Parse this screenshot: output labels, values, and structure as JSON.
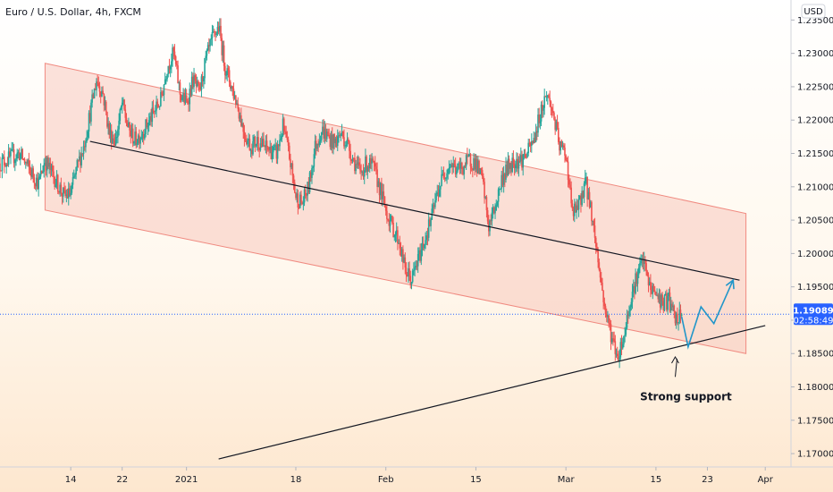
{
  "chart_title": "Euro / U.S. Dollar, 4h, FXCM",
  "currency_badge": "USD",
  "price_tag": {
    "value": "1.19089",
    "countdown": "02:58:49",
    "price": 1.19089,
    "bg_color": "#2962ff"
  },
  "annotation": "Strong support",
  "colors": {
    "up": "#26a69a",
    "down": "#ef5350",
    "channel_fill": "#f6b9ad",
    "channel_stroke": "#f08a80",
    "trendline": "#131722",
    "projection": "#2196c9",
    "price_line": "#2962ff"
  },
  "chart_data": {
    "type": "candlestick",
    "title": "Euro / U.S. Dollar, 4h, FXCM",
    "y_ticks": [
      1.17,
      1.175,
      1.18,
      1.185,
      1.19,
      1.195,
      1.2,
      1.205,
      1.21,
      1.215,
      1.22,
      1.225,
      1.23,
      1.235
    ],
    "y_tick_labels": [
      "1.17000",
      "1.17500",
      "1.18000",
      "1.18500",
      "1.19000",
      "1.19500",
      "1.20000",
      "1.20500",
      "1.21000",
      "1.21500",
      "1.22000",
      "1.22500",
      "1.23000",
      "1.23500"
    ],
    "ylim": [
      1.168,
      1.238
    ],
    "x_ticks": [
      "14",
      "22",
      "2021",
      "18",
      "Feb",
      "15",
      "Mar",
      "15",
      "23",
      "Apr"
    ],
    "x_tick_dates": [
      "2020-12-14",
      "2020-12-22",
      "2021-01-01",
      "2021-01-18",
      "2021-02-01",
      "2021-02-15",
      "2021-03-01",
      "2021-03-15",
      "2021-03-23",
      "2021-04-01"
    ],
    "xlim": [
      "2020-12-03",
      "2021-04-05"
    ],
    "price_path": [
      [
        "2020-12-03",
        1.2135
      ],
      [
        "2020-12-06",
        1.215
      ],
      [
        "2020-12-09",
        1.2105
      ],
      [
        "2020-12-10",
        1.214
      ],
      [
        "2020-12-13",
        1.2085
      ],
      [
        "2020-12-14",
        1.209
      ],
      [
        "2020-12-15",
        1.213
      ],
      [
        "2020-12-16",
        1.216
      ],
      [
        "2020-12-17",
        1.221
      ],
      [
        "2020-12-18",
        1.226
      ],
      [
        "2020-12-19",
        1.224
      ],
      [
        "2020-12-20",
        1.218
      ],
      [
        "2020-12-21",
        1.217
      ],
      [
        "2020-12-22",
        1.2225
      ],
      [
        "2020-12-23",
        1.2185
      ],
      [
        "2020-12-24",
        1.217
      ],
      [
        "2020-12-25",
        1.218
      ],
      [
        "2020-12-26",
        1.2195
      ],
      [
        "2020-12-28",
        1.223
      ],
      [
        "2020-12-29",
        1.228
      ],
      [
        "2020-12-30",
        1.23
      ],
      [
        "2020-12-31",
        1.224
      ],
      [
        "2021-01-01",
        1.2225
      ],
      [
        "2021-01-02",
        1.226
      ],
      [
        "2021-01-03",
        1.224
      ],
      [
        "2021-01-04",
        1.229
      ],
      [
        "2021-01-05",
        1.232
      ],
      [
        "2021-01-06",
        1.234
      ],
      [
        "2021-01-07",
        1.228
      ],
      [
        "2021-01-08",
        1.225
      ],
      [
        "2021-01-09",
        1.222
      ],
      [
        "2021-01-10",
        1.218
      ],
      [
        "2021-01-11",
        1.216
      ],
      [
        "2021-01-12",
        1.217
      ],
      [
        "2021-01-13",
        1.216
      ],
      [
        "2021-01-14",
        1.2155
      ],
      [
        "2021-01-15",
        1.215
      ],
      [
        "2021-01-16",
        1.219
      ],
      [
        "2021-01-17",
        1.2145
      ],
      [
        "2021-01-18",
        1.2085
      ],
      [
        "2021-01-19",
        1.2075
      ],
      [
        "2021-01-20",
        1.21
      ],
      [
        "2021-01-21",
        1.216
      ],
      [
        "2021-01-22",
        1.2185
      ],
      [
        "2021-01-23",
        1.2175
      ],
      [
        "2021-01-24",
        1.2165
      ],
      [
        "2021-01-25",
        1.218
      ],
      [
        "2021-01-26",
        1.2165
      ],
      [
        "2021-01-27",
        1.214
      ],
      [
        "2021-01-28",
        1.212
      ],
      [
        "2021-01-29",
        1.2135
      ],
      [
        "2021-01-30",
        1.213
      ],
      [
        "2021-01-31",
        1.21
      ],
      [
        "2021-02-01",
        1.2065
      ],
      [
        "2021-02-02",
        1.204
      ],
      [
        "2021-02-03",
        1.202
      ],
      [
        "2021-02-04",
        1.1975
      ],
      [
        "2021-02-05",
        1.196
      ],
      [
        "2021-02-06",
        1.199
      ],
      [
        "2021-02-07",
        1.202
      ],
      [
        "2021-02-08",
        1.205
      ],
      [
        "2021-02-09",
        1.209
      ],
      [
        "2021-02-10",
        1.212
      ],
      [
        "2021-02-11",
        1.2135
      ],
      [
        "2021-02-12",
        1.2125
      ],
      [
        "2021-02-13",
        1.213
      ],
      [
        "2021-02-14",
        1.214
      ],
      [
        "2021-02-15",
        1.2135
      ],
      [
        "2021-02-16",
        1.211
      ],
      [
        "2021-02-17",
        1.204
      ],
      [
        "2021-02-18",
        1.207
      ],
      [
        "2021-02-19",
        1.211
      ],
      [
        "2021-02-20",
        1.213
      ],
      [
        "2021-02-21",
        1.214
      ],
      [
        "2021-02-22",
        1.214
      ],
      [
        "2021-02-23",
        1.215
      ],
      [
        "2021-02-24",
        1.217
      ],
      [
        "2021-02-25",
        1.221
      ],
      [
        "2021-02-26",
        1.224
      ],
      [
        "2021-02-27",
        1.221
      ],
      [
        "2021-02-28",
        1.216
      ],
      [
        "2021-03-01",
        1.215
      ],
      [
        "2021-03-02",
        1.206
      ],
      [
        "2021-03-03",
        1.207
      ],
      [
        "2021-03-04",
        1.211
      ],
      [
        "2021-03-05",
        1.206
      ],
      [
        "2021-03-06",
        1.199
      ],
      [
        "2021-03-07",
        1.192
      ],
      [
        "2021-03-08",
        1.188
      ],
      [
        "2021-03-09",
        1.1845
      ],
      [
        "2021-03-10",
        1.1875
      ],
      [
        "2021-03-11",
        1.193
      ],
      [
        "2021-03-12",
        1.1965
      ],
      [
        "2021-03-13",
        1.199
      ],
      [
        "2021-03-14",
        1.195
      ],
      [
        "2021-03-15",
        1.194
      ],
      [
        "2021-03-16",
        1.1925
      ],
      [
        "2021-03-17",
        1.193
      ],
      [
        "2021-03-18",
        1.19
      ],
      [
        "2021-03-19",
        1.1905
      ]
    ],
    "channel": {
      "upper_start": [
        "2020-12-10",
        1.2285
      ],
      "upper_end": [
        "2021-03-29",
        1.206
      ],
      "lower_start": [
        "2020-12-10",
        1.2065
      ],
      "lower_end": [
        "2021-03-29",
        1.185
      ]
    },
    "midline": {
      "start": [
        "2020-12-17",
        1.2168
      ],
      "end": [
        "2021-03-28",
        1.196
      ]
    },
    "support_line": {
      "start": [
        "2021-01-06",
        1.1692
      ],
      "end": [
        "2021-04-01",
        1.1892
      ]
    },
    "projection": [
      [
        "2021-03-19",
        1.1905
      ],
      [
        "2021-03-20",
        1.186
      ],
      [
        "2021-03-22",
        1.192
      ],
      [
        "2021-03-24",
        1.1895
      ],
      [
        "2021-03-27",
        1.196
      ]
    ],
    "annotation_arrow": {
      "from": [
        "2021-03-18",
        1.1815
      ],
      "to": [
        "2021-03-18",
        1.1845
      ]
    },
    "annotation_position": [
      "2021-03-18",
      1.1785
    ]
  }
}
